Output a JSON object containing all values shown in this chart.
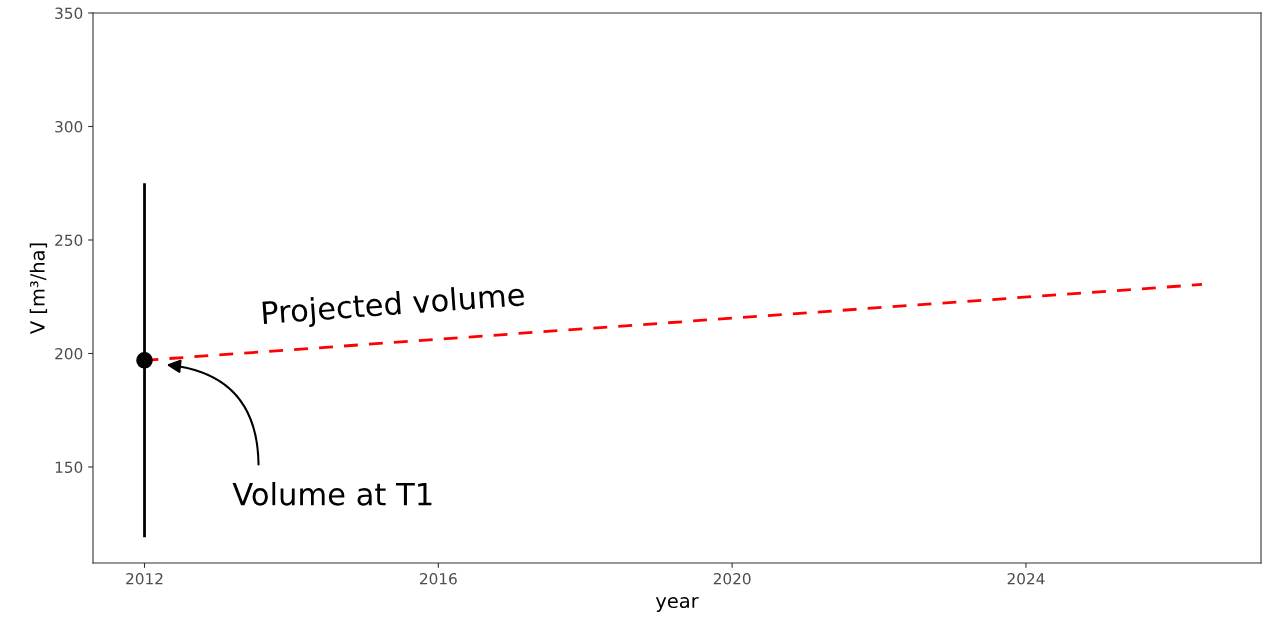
{
  "chart_data": {
    "type": "scatter",
    "xlabel": "year",
    "ylabel": "V [m³/ha]",
    "series": [
      {
        "color": "#000000",
        "x": [
          "2012"
        ],
        "values": [
          197
        ],
        "errors": [
          [
            119,
            275
          ]
        ],
        "marker": "circle"
      },
      {
        "type": "line",
        "color": "#ff0000",
        "x": [
          "2012",
          "2026-05-26"
        ],
        "values": [
          197,
          230.4
        ],
        "line_style": "dashed",
        "marker": "none"
      }
    ],
    "annotations": [
      {
        "text": "Projected volume",
        "x": "2015-05-26",
        "y": 207
      },
      {
        "text": "Volume at T1",
        "x": "2012-04-20",
        "y": 195
      }
    ],
    "xlim": [
      "2011-04-20",
      "2027-03-15"
    ],
    "ylim": [
      107.7,
      350
    ],
    "xticks": [
      "2012",
      "2016",
      "2020",
      "2024"
    ],
    "yticks": [
      150,
      200,
      250,
      300,
      350
    ],
    "grid": false,
    "legend": false
  }
}
